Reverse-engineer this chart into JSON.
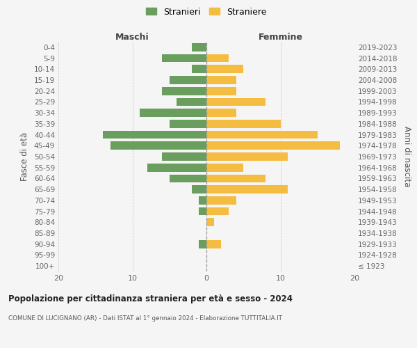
{
  "age_groups": [
    "100+",
    "95-99",
    "90-94",
    "85-89",
    "80-84",
    "75-79",
    "70-74",
    "65-69",
    "60-64",
    "55-59",
    "50-54",
    "45-49",
    "40-44",
    "35-39",
    "30-34",
    "25-29",
    "20-24",
    "15-19",
    "10-14",
    "5-9",
    "0-4"
  ],
  "birth_years": [
    "≤ 1923",
    "1924-1928",
    "1929-1933",
    "1934-1938",
    "1939-1943",
    "1944-1948",
    "1949-1953",
    "1954-1958",
    "1959-1963",
    "1964-1968",
    "1969-1973",
    "1974-1978",
    "1979-1983",
    "1984-1988",
    "1989-1993",
    "1994-1998",
    "1999-2003",
    "2004-2008",
    "2009-2013",
    "2014-2018",
    "2019-2023"
  ],
  "maschi": [
    0,
    0,
    1,
    0,
    0,
    1,
    1,
    2,
    5,
    8,
    6,
    13,
    14,
    5,
    9,
    4,
    6,
    5,
    2,
    6,
    2
  ],
  "femmine": [
    0,
    0,
    2,
    0,
    1,
    3,
    4,
    11,
    8,
    5,
    11,
    18,
    15,
    10,
    4,
    8,
    4,
    4,
    5,
    3,
    0
  ],
  "maschi_color": "#6a9e5e",
  "femmine_color": "#f5bc42",
  "background_color": "#f5f5f5",
  "grid_color": "#cccccc",
  "title": "Popolazione per cittadinanza straniera per età e sesso - 2024",
  "subtitle": "COMUNE DI LUCIGNANO (AR) - Dati ISTAT al 1° gennaio 2024 - Elaborazione TUTTITALIA.IT",
  "xlabel_left": "Maschi",
  "xlabel_right": "Femmine",
  "ylabel_left": "Fasce di età",
  "ylabel_right": "Anni di nascita",
  "xlim": 20,
  "legend_labels": [
    "Stranieri",
    "Straniere"
  ]
}
